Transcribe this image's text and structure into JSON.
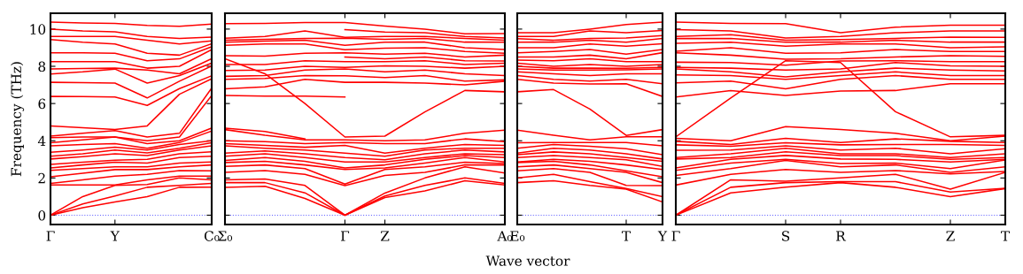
{
  "chart_data": [
    {
      "type": "line",
      "ylabel": "Frequency (THz)",
      "categories": [
        "Γ",
        null,
        "Y",
        null,
        null,
        "C₀"
      ],
      "ylim": [
        -0.5,
        10.85
      ],
      "yticks": [
        0,
        2,
        4,
        6,
        8,
        10
      ],
      "ref_lines": [
        {
          "axis": "y",
          "value": 0,
          "color": "#6666ff",
          "line_style": "dotted"
        }
      ],
      "series": [
        {
          "color": "#ff0000",
          "values": [
            0,
            0.4,
            0.71,
            1.0,
            1.5,
            1.51
          ]
        },
        {
          "color": "#ff0000",
          "values": [
            0,
            0.6,
            1.03,
            1.5,
            1.6,
            1.71
          ]
        },
        {
          "color": "#ff0000",
          "values": [
            0,
            1.0,
            1.6,
            1.65,
            2.0,
            1.9
          ]
        },
        {
          "color": "#ff0000",
          "values": [
            1.62,
            1.62,
            1.62,
            1.9,
            2.1,
            2.1
          ]
        },
        {
          "color": "#ff0000",
          "values": [
            1.71,
            1.9,
            2.1,
            2.2,
            2.4,
            2.38
          ]
        },
        {
          "color": "#ff0000",
          "values": [
            2.06,
            2.25,
            2.45,
            2.45,
            2.6,
            2.7
          ]
        },
        {
          "color": "#ff0000",
          "values": [
            2.41,
            2.5,
            2.6,
            2.6,
            2.8,
            2.86
          ]
        },
        {
          "color": "#ff0000",
          "values": [
            2.54,
            2.7,
            2.85,
            2.8,
            3.1,
            3.17
          ]
        },
        {
          "color": "#ff0000",
          "values": [
            2.73,
            2.85,
            2.95,
            3.0,
            3.3,
            3.41
          ]
        },
        {
          "color": "#ff0000",
          "values": [
            3.02,
            3.15,
            3.3,
            3.2,
            3.5,
            3.73
          ]
        },
        {
          "color": "#ff0000",
          "values": [
            3.17,
            3.3,
            3.5,
            3.35,
            3.6,
            3.89
          ]
        },
        {
          "color": "#ff0000",
          "values": [
            3.38,
            3.5,
            3.65,
            3.5,
            3.8,
            4.0
          ]
        },
        {
          "color": "#ff0000",
          "values": [
            3.73,
            3.8,
            3.85,
            3.6,
            3.9,
            4.52
          ]
        },
        {
          "color": "#ff0000",
          "values": [
            3.89,
            4.05,
            4.2,
            3.85,
            4.0,
            4.68
          ]
        },
        {
          "color": "#ff0000",
          "values": [
            4.17,
            4.2,
            4.2,
            4.0,
            4.2,
            6.43
          ]
        },
        {
          "color": "#ff0000",
          "values": [
            4.25,
            4.4,
            4.55,
            4.2,
            4.4,
            6.83
          ]
        },
        {
          "color": "#ff0000",
          "values": [
            4.79,
            4.7,
            4.6,
            4.8,
            6.5,
            7.33
          ]
        },
        {
          "color": "#ff0000",
          "values": [
            6.38,
            6.37,
            6.35,
            5.9,
            6.8,
            7.49
          ]
        },
        {
          "color": "#ff0000",
          "values": [
            7.14,
            7.12,
            7.1,
            6.3,
            7.2,
            8.02
          ]
        },
        {
          "color": "#ff0000",
          "values": [
            7.59,
            7.7,
            7.85,
            7.1,
            7.5,
            8.17
          ]
        },
        {
          "color": "#ff0000",
          "values": [
            7.86,
            7.88,
            7.9,
            7.8,
            7.6,
            8.41
          ]
        },
        {
          "color": "#ff0000",
          "values": [
            8.25,
            8.25,
            8.25,
            7.9,
            8.0,
            8.9
          ]
        },
        {
          "color": "#ff0000",
          "values": [
            8.73,
            8.72,
            8.7,
            8.3,
            8.4,
            9.05
          ]
        },
        {
          "color": "#ff0000",
          "values": [
            9.44,
            9.3,
            9.2,
            8.7,
            8.6,
            9.21
          ]
        },
        {
          "color": "#ff0000",
          "values": [
            9.6,
            9.6,
            9.6,
            9.4,
            9.2,
            9.37
          ]
        },
        {
          "color": "#ff0000",
          "values": [
            10.0,
            9.9,
            9.85,
            9.6,
            9.5,
            9.57
          ]
        },
        {
          "color": "#ff0000",
          "values": [
            10.37,
            10.33,
            10.3,
            10.2,
            10.15,
            10.27
          ]
        }
      ]
    },
    {
      "type": "line",
      "xlabel": "Wave vector",
      "tick_labels": "x",
      "categories": [
        "Σ₀",
        null,
        null,
        "Γ",
        "Z",
        null,
        null,
        "A₀"
      ],
      "ylim": [
        -0.5,
        10.85
      ],
      "yticks": [
        0,
        2,
        4,
        6,
        8,
        10
      ],
      "ref_lines": [
        {
          "axis": "y",
          "value": 0,
          "color": "#6666ff",
          "line_style": "dotted"
        }
      ],
      "series": [
        {
          "color": "#ff0000",
          "values": [
            1.49,
            1.55,
            0.9,
            0,
            0.95,
            1.3,
            1.85,
            1.63
          ]
        },
        {
          "color": "#ff0000",
          "values": [
            1.75,
            1.75,
            1.2,
            0,
            1.03,
            1.6,
            2.0,
            1.71
          ]
        },
        {
          "color": "#ff0000",
          "values": [
            1.9,
            1.95,
            1.6,
            0,
            1.19,
            2.0,
            2.6,
            2.27
          ]
        },
        {
          "color": "#ff0000",
          "values": [
            2.3,
            2.4,
            2.2,
            1.59,
            2.14,
            2.3,
            2.7,
            2.7
          ]
        },
        {
          "color": "#ff0000",
          "values": [
            2.62,
            2.7,
            2.5,
            1.67,
            2.46,
            2.6,
            2.85,
            2.78
          ]
        },
        {
          "color": "#ff0000",
          "values": [
            2.83,
            2.9,
            2.7,
            2.46,
            2.54,
            2.8,
            3.1,
            2.86
          ]
        },
        {
          "color": "#ff0000",
          "values": [
            2.94,
            3.1,
            2.9,
            2.54,
            2.7,
            3.0,
            3.2,
            3.1
          ]
        },
        {
          "color": "#ff0000",
          "values": [
            3.17,
            3.3,
            3.1,
            2.86,
            2.86,
            3.1,
            3.3,
            3.25
          ]
        },
        {
          "color": "#ff0000",
          "values": [
            3.33,
            3.45,
            3.3,
            3.1,
            2.98,
            3.3,
            3.5,
            3.4
          ]
        },
        {
          "color": "#ff0000",
          "values": [
            3.73,
            3.6,
            3.5,
            3.33,
            3.17,
            3.5,
            3.6,
            3.6
          ]
        },
        {
          "color": "#ff0000",
          "values": [
            3.85,
            3.75,
            3.65,
            3.75,
            3.33,
            3.6,
            3.8,
            3.75
          ]
        },
        {
          "color": "#ff0000",
          "values": [
            4.0,
            3.95,
            3.85,
            3.9,
            3.85,
            3.85,
            4.1,
            3.95
          ]
        },
        {
          "color": "#ff0000",
          "values": [
            4.6,
            4.3,
            4.05,
            4.05,
            4.0,
            4.05,
            4.4,
            4.57
          ]
        },
        {
          "color": "#ff0000",
          "values": [
            8.41,
            7.6,
            6.0,
            4.2,
            4.25,
            5.55,
            6.7,
            6.63
          ]
        },
        {
          "color": "#ff0000",
          "values": [
            6.43,
            6.4,
            6.4,
            6.35,
            null,
            null,
            null,
            null
          ]
        },
        {
          "color": "#ff0000",
          "values": [
            6.79,
            6.9,
            7.3,
            7.14,
            7.14,
            7.1,
            7.0,
            7.2
          ]
        },
        {
          "color": "#ff0000",
          "values": [
            7.3,
            7.35,
            7.5,
            7.49,
            7.4,
            7.5,
            7.2,
            7.27
          ]
        },
        {
          "color": "#ff0000",
          "values": [
            7.46,
            7.5,
            7.8,
            7.86,
            7.7,
            7.8,
            7.6,
            7.5
          ]
        },
        {
          "color": "#ff0000",
          "values": [
            7.78,
            7.8,
            8.0,
            7.94,
            8.02,
            8.0,
            7.9,
            8.0
          ]
        },
        {
          "color": "#ff0000",
          "values": [
            8.1,
            8.1,
            8.3,
            8.25,
            8.25,
            8.3,
            8.1,
            8.17
          ]
        },
        {
          "color": "#ff0000",
          "values": [
            null,
            null,
            null,
            8.5,
            8.4,
            8.5,
            8.3,
            8.29
          ]
        },
        {
          "color": "#ff0000",
          "values": [
            4.68,
            4.5,
            4.1,
            null,
            null,
            null,
            null,
            null
          ]
        },
        {
          "color": "#ff0000",
          "values": [
            8.57,
            8.55,
            8.7,
            8.73,
            8.65,
            8.7,
            8.5,
            8.6
          ]
        },
        {
          "color": "#ff0000",
          "values": [
            9.13,
            9.2,
            9.2,
            8.89,
            8.97,
            9.0,
            8.8,
            8.7
          ]
        },
        {
          "color": "#ff0000",
          "values": [
            9.29,
            9.35,
            9.4,
            9.13,
            9.29,
            9.3,
            9.0,
            8.9
          ]
        },
        {
          "color": "#ff0000",
          "values": [
            9.4,
            9.45,
            9.5,
            9.51,
            9.45,
            9.5,
            9.3,
            9.29
          ]
        },
        {
          "color": "#ff0000",
          "values": [
            9.51,
            9.6,
            9.9,
            9.56,
            9.6,
            9.6,
            9.5,
            9.4
          ]
        },
        {
          "color": "#ff0000",
          "values": [
            null,
            null,
            null,
            9.97,
            9.84,
            9.8,
            9.6,
            9.52
          ]
        },
        {
          "color": "#ff0000",
          "values": [
            10.29,
            10.3,
            10.35,
            10.35,
            10.16,
            10.0,
            9.75,
            9.76
          ]
        }
      ]
    },
    {
      "type": "line",
      "tick_labels": "x",
      "categories": [
        "E₀",
        null,
        null,
        "T",
        "Y"
      ],
      "ylim": [
        -0.5,
        10.85
      ],
      "yticks": [
        0,
        2,
        4,
        6,
        8,
        10
      ],
      "ref_lines": [
        {
          "axis": "y",
          "value": 0,
          "color": "#6666ff",
          "line_style": "dotted"
        }
      ],
      "series": [
        {
          "color": "#ff0000",
          "values": [
            1.75,
            1.85,
            1.6,
            1.4,
            0.71
          ]
        },
        {
          "color": "#ff0000",
          "values": [
            2.0,
            2.2,
            1.8,
            1.43,
            1.0
          ]
        },
        {
          "color": "#ff0000",
          "values": [
            2.38,
            2.5,
            2.3,
            1.6,
            1.59
          ]
        },
        {
          "color": "#ff0000",
          "values": [
            2.6,
            2.7,
            2.5,
            2.3,
            1.75
          ]
        },
        {
          "color": "#ff0000",
          "values": [
            2.83,
            2.9,
            2.7,
            2.38,
            2.06
          ]
        },
        {
          "color": "#ff0000",
          "values": [
            2.86,
            3.0,
            2.9,
            2.7,
            2.46
          ]
        },
        {
          "color": "#ff0000",
          "values": [
            3.1,
            3.2,
            3.1,
            2.98,
            2.62
          ]
        },
        {
          "color": "#ff0000",
          "values": [
            3.25,
            3.4,
            3.3,
            3.1,
            2.9
          ]
        },
        {
          "color": "#ff0000",
          "values": [
            3.33,
            3.6,
            3.5,
            3.3,
            3.02
          ]
        },
        {
          "color": "#ff0000",
          "values": [
            3.6,
            3.8,
            3.7,
            3.57,
            3.25
          ]
        },
        {
          "color": "#ff0000",
          "values": [
            3.89,
            3.9,
            3.9,
            3.9,
            3.73
          ]
        },
        {
          "color": "#ff0000",
          "values": [
            4.57,
            4.3,
            4.05,
            4.21,
            4.21
          ]
        },
        {
          "color": "#ff0000",
          "values": [
            6.63,
            6.75,
            5.7,
            4.29,
            4.6
          ]
        },
        {
          "color": "#ff0000",
          "values": [
            7.3,
            7.1,
            7.05,
            7.06,
            6.38
          ]
        },
        {
          "color": "#ff0000",
          "values": [
            7.5,
            7.3,
            7.2,
            7.3,
            7.06
          ]
        },
        {
          "color": "#ff0000",
          "values": [
            7.7,
            7.6,
            7.5,
            7.6,
            7.6
          ]
        },
        {
          "color": "#ff0000",
          "values": [
            7.86,
            7.8,
            7.8,
            7.81,
            7.86
          ]
        },
        {
          "color": "#ff0000",
          "values": [
            8.0,
            7.9,
            7.9,
            7.89,
            7.94
          ]
        },
        {
          "color": "#ff0000",
          "values": [
            8.17,
            8.0,
            8.1,
            8.0,
            8.1
          ]
        },
        {
          "color": "#ff0000",
          "values": [
            8.33,
            8.3,
            8.4,
            8.25,
            8.25
          ]
        },
        {
          "color": "#ff0000",
          "values": [
            8.5,
            8.5,
            8.6,
            8.4,
            8.73
          ]
        },
        {
          "color": "#ff0000",
          "values": [
            8.73,
            8.8,
            8.9,
            8.65,
            8.9
          ]
        },
        {
          "color": "#ff0000",
          "values": [
            9.0,
            9.0,
            9.2,
            9.08,
            9.21
          ]
        },
        {
          "color": "#ff0000",
          "values": [
            9.29,
            9.3,
            9.4,
            9.3,
            9.5
          ]
        },
        {
          "color": "#ff0000",
          "values": [
            9.48,
            9.4,
            9.5,
            9.52,
            9.65
          ]
        },
        {
          "color": "#ff0000",
          "values": [
            9.6,
            9.6,
            9.9,
            9.8,
            9.92
          ]
        },
        {
          "color": "#ff0000",
          "values": [
            9.81,
            9.8,
            10.0,
            10.24,
            10.37
          ]
        }
      ]
    },
    {
      "type": "line",
      "tick_labels": "x",
      "categories": [
        "Γ",
        null,
        "S",
        "R",
        null,
        "Z",
        "T"
      ],
      "ylim": [
        -0.5,
        10.85
      ],
      "yticks": [
        0,
        2,
        4,
        6,
        8,
        10
      ],
      "ref_lines": [
        {
          "axis": "y",
          "value": 0,
          "color": "#6666ff",
          "line_style": "dotted"
        }
      ],
      "series": [
        {
          "color": "#ff0000",
          "values": [
            0,
            1.2,
            1.51,
            1.75,
            1.5,
            1.0,
            1.43
          ]
        },
        {
          "color": "#ff0000",
          "values": [
            0,
            1.5,
            1.75,
            1.8,
            1.8,
            1.24,
            1.45
          ]
        },
        {
          "color": "#ff0000",
          "values": [
            0,
            1.9,
            1.83,
            2.0,
            2.2,
            1.4,
            2.3
          ]
        },
        {
          "color": "#ff0000",
          "values": [
            1.62,
            2.2,
            2.46,
            2.3,
            2.4,
            2.22,
            2.35
          ]
        },
        {
          "color": "#ff0000",
          "values": [
            2.14,
            2.5,
            2.94,
            2.6,
            2.7,
            2.3,
            2.6
          ]
        },
        {
          "color": "#ff0000",
          "values": [
            2.41,
            2.8,
            3.0,
            2.78,
            2.8,
            2.5,
            2.97
          ]
        },
        {
          "color": "#ff0000",
          "values": [
            2.54,
            3.0,
            3.21,
            3.02,
            3.0,
            2.86,
            3.0
          ]
        },
        {
          "color": "#ff0000",
          "values": [
            3.02,
            3.1,
            3.41,
            3.2,
            3.2,
            3.0,
            3.1
          ]
        },
        {
          "color": "#ff0000",
          "values": [
            3.1,
            3.3,
            3.6,
            3.3,
            3.3,
            3.1,
            3.3
          ]
        },
        {
          "color": "#ff0000",
          "values": [
            3.49,
            3.5,
            3.73,
            3.5,
            3.6,
            3.3,
            3.57
          ]
        },
        {
          "color": "#ff0000",
          "values": [
            3.78,
            3.7,
            3.89,
            3.78,
            3.8,
            3.8,
            3.75
          ]
        },
        {
          "color": "#ff0000",
          "values": [
            3.97,
            3.8,
            4.13,
            3.9,
            4.1,
            3.97,
            3.9
          ]
        },
        {
          "color": "#ff0000",
          "values": [
            4.13,
            4.0,
            4.76,
            4.6,
            4.4,
            4.0,
            4.25
          ]
        },
        {
          "color": "#ff0000",
          "values": [
            4.21,
            6.3,
            8.3,
            8.2,
            5.56,
            4.21,
            4.29
          ]
        },
        {
          "color": "#ff0000",
          "values": [
            6.35,
            6.7,
            6.43,
            6.67,
            6.7,
            7.06,
            7.06
          ]
        },
        {
          "color": "#ff0000",
          "values": [
            7.11,
            7.2,
            6.79,
            7.3,
            7.5,
            7.3,
            7.3
          ]
        },
        {
          "color": "#ff0000",
          "values": [
            7.54,
            7.5,
            7.3,
            7.5,
            7.7,
            7.5,
            7.5
          ]
        },
        {
          "color": "#ff0000",
          "values": [
            7.86,
            7.7,
            7.43,
            7.7,
            7.9,
            7.8,
            7.75
          ]
        },
        {
          "color": "#ff0000",
          "values": [
            7.94,
            7.9,
            7.8,
            7.86,
            8.2,
            8.02,
            8.0
          ]
        },
        {
          "color": "#ff0000",
          "values": [
            8.22,
            8.2,
            8.06,
            8.29,
            8.3,
            8.25,
            8.25
          ]
        },
        {
          "color": "#ff0000",
          "values": [
            8.73,
            8.6,
            8.38,
            8.4,
            8.5,
            8.57,
            8.54
          ]
        },
        {
          "color": "#ff0000",
          "values": [
            8.81,
            9.0,
            8.7,
            8.73,
            8.9,
            8.8,
            8.8
          ]
        },
        {
          "color": "#ff0000",
          "values": [
            9.24,
            9.3,
            9.08,
            9.2,
            9.2,
            9.0,
            9.05
          ]
        },
        {
          "color": "#ff0000",
          "values": [
            9.49,
            9.5,
            9.29,
            9.3,
            9.4,
            9.3,
            9.3
          ]
        },
        {
          "color": "#ff0000",
          "values": [
            9.6,
            9.7,
            9.4,
            9.44,
            9.5,
            9.57,
            9.56
          ]
        },
        {
          "color": "#ff0000",
          "values": [
            9.97,
            9.9,
            9.52,
            9.6,
            9.8,
            9.9,
            9.9
          ]
        },
        {
          "color": "#ff0000",
          "values": [
            10.37,
            10.3,
            10.29,
            9.81,
            10.1,
            10.21,
            10.21
          ]
        }
      ]
    }
  ]
}
